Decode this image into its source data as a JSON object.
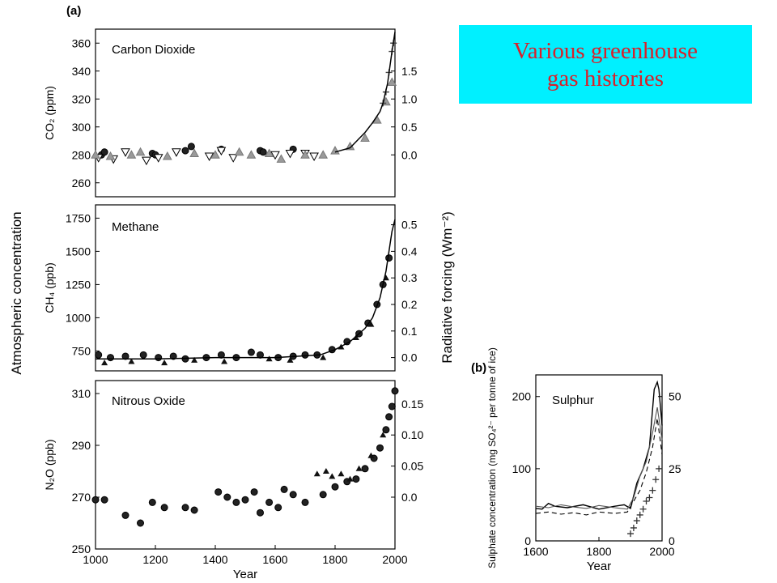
{
  "slide_title": {
    "line1": "Various greenhouse",
    "line2": "gas histories"
  },
  "figure": {
    "panel_a_label": "(a)",
    "panel_b_label": "(b)",
    "y_label_left": "Atmospheric concentration",
    "y_label_right": "Radiative forcing (Wm⁻²)"
  },
  "chart_data": [
    {
      "type": "scatter",
      "title": "Carbon Dioxide",
      "ylabel": "CO₂ (ppm)",
      "xlim": [
        1000,
        2000
      ],
      "ylim": [
        250,
        370
      ],
      "y_ticks": [
        260,
        280,
        300,
        320,
        340,
        360
      ],
      "y2_ticks": [
        0.0,
        0.5,
        1.0,
        1.5
      ],
      "y2_tick_labels": [
        "0.0",
        "0.5",
        "1.0",
        "1.5"
      ],
      "y2_tick_positions": [
        280,
        300,
        320,
        340
      ],
      "series": [
        {
          "marker": "circle-filled",
          "x": [
            1020,
            1030,
            1190,
            1200,
            1300,
            1320,
            1420,
            1550,
            1560,
            1660
          ],
          "y": [
            280,
            282,
            281,
            280,
            283,
            286,
            284,
            283,
            282,
            284
          ]
        },
        {
          "marker": "triangle-down-open",
          "x": [
            1010,
            1060,
            1100,
            1170,
            1210,
            1270,
            1380,
            1420,
            1460,
            1600,
            1650,
            1700,
            1730
          ],
          "y": [
            278,
            277,
            282,
            276,
            278,
            282,
            279,
            283,
            278,
            280,
            281,
            281,
            279
          ]
        },
        {
          "marker": "triangle-filled-gray",
          "x": [
            1000,
            1050,
            1120,
            1150,
            1240,
            1330,
            1400,
            1480,
            1520,
            1580,
            1620,
            1700,
            1760,
            1800,
            1850,
            1900,
            1940,
            1970,
            1990
          ],
          "y": [
            280,
            279,
            280,
            282,
            279,
            281,
            280,
            282,
            280,
            281,
            277,
            280,
            280,
            283,
            286,
            292,
            305,
            318,
            332
          ]
        },
        {
          "marker": "plus",
          "x": [
            1960,
            1970,
            1980,
            1990,
            1995
          ],
          "y": [
            317,
            325,
            339,
            354,
            360
          ]
        }
      ],
      "curve": {
        "x": [
          1800,
          1850,
          1900,
          1925,
          1950,
          1960,
          1975,
          1990,
          2000
        ],
        "y": [
          282,
          285,
          296,
          303,
          311,
          317,
          331,
          354,
          368
        ]
      }
    },
    {
      "type": "scatter",
      "title": "Methane",
      "ylabel": "CH₄ (ppb)",
      "xlim": [
        1000,
        2000
      ],
      "ylim": [
        600,
        1850
      ],
      "y_ticks": [
        750,
        1000,
        1250,
        1500,
        1750
      ],
      "y2_ticks": [
        0.0,
        0.1,
        0.2,
        0.3,
        0.4,
        0.5
      ],
      "y2_tick_labels": [
        "0.0",
        "0.1",
        "0.2",
        "0.3",
        "0.4",
        "0.5"
      ],
      "y2_tick_positions": [
        700,
        900,
        1100,
        1300,
        1500,
        1700
      ],
      "series": [
        {
          "marker": "circle-filled",
          "x": [
            1010,
            1050,
            1100,
            1160,
            1210,
            1260,
            1300,
            1370,
            1420,
            1470,
            1520,
            1550,
            1610,
            1660,
            1700,
            1740,
            1790,
            1840,
            1880,
            1910,
            1940,
            1960,
            1980
          ],
          "y": [
            720,
            700,
            710,
            720,
            700,
            710,
            690,
            700,
            720,
            700,
            740,
            720,
            700,
            710,
            720,
            720,
            760,
            820,
            880,
            960,
            1100,
            1250,
            1450
          ]
        },
        {
          "marker": "triangle-filled",
          "x": [
            1030,
            1120,
            1230,
            1330,
            1430,
            1580,
            1650,
            1760,
            1820,
            1870,
            1920,
            1970
          ],
          "y": [
            660,
            670,
            660,
            680,
            670,
            690,
            680,
            700,
            780,
            850,
            950,
            1300
          ]
        }
      ],
      "curve": {
        "x": [
          1000,
          1200,
          1400,
          1600,
          1750,
          1800,
          1850,
          1900,
          1925,
          1950,
          1970,
          1980,
          1990,
          2000
        ],
        "y": [
          690,
          690,
          700,
          700,
          720,
          760,
          820,
          920,
          1000,
          1150,
          1350,
          1500,
          1650,
          1740
        ]
      }
    },
    {
      "type": "scatter",
      "title": "Nitrous Oxide",
      "ylabel": "N₂O (ppb)",
      "xlabel": "Year",
      "xlim": [
        1000,
        2000
      ],
      "x_ticks": [
        1000,
        1200,
        1400,
        1600,
        1800,
        2000
      ],
      "ylim": [
        250,
        315
      ],
      "y_ticks": [
        250,
        270,
        290,
        310
      ],
      "y2_ticks": [
        0.0,
        0.05,
        0.1,
        0.15
      ],
      "y2_tick_labels": [
        "0.0",
        "0.05",
        "0.10",
        "0.15"
      ],
      "y2_tick_positions": [
        270,
        282,
        294,
        306
      ],
      "series": [
        {
          "marker": "circle-filled",
          "x": [
            1000,
            1030,
            1100,
            1150,
            1190,
            1230,
            1300,
            1330,
            1410,
            1440,
            1470,
            1500,
            1530,
            1550,
            1580,
            1610,
            1630,
            1660,
            1700,
            1760,
            1800,
            1840,
            1870,
            1900,
            1930,
            1950,
            1970,
            1980,
            1990,
            2000
          ],
          "y": [
            269,
            269,
            263,
            260,
            268,
            266,
            266,
            265,
            272,
            270,
            268,
            269,
            272,
            264,
            268,
            266,
            273,
            271,
            268,
            271,
            274,
            276,
            277,
            281,
            285,
            289,
            296,
            301,
            305,
            311
          ]
        },
        {
          "marker": "triangle-filled",
          "x": [
            1740,
            1770,
            1790,
            1820,
            1850,
            1880,
            1920,
            1960
          ],
          "y": [
            279,
            280,
            278,
            279,
            277,
            281,
            286,
            294
          ]
        }
      ]
    },
    {
      "type": "line",
      "title": "Sulphur",
      "ylabel": "Sulphate concentration (mg SO₄²⁻ per tonne of ice)",
      "xlabel": "Year",
      "xlim": [
        1600,
        2000
      ],
      "x_ticks": [
        1600,
        1800,
        2000
      ],
      "ylim": [
        0,
        230
      ],
      "y_ticks": [
        0,
        100,
        200
      ],
      "y2_ticks": [
        0,
        25,
        50
      ],
      "y2_tick_positions": [
        0,
        100,
        200
      ],
      "series": [
        {
          "style": "solid",
          "x": [
            1600,
            1620,
            1640,
            1660,
            1700,
            1750,
            1800,
            1850,
            1880,
            1900,
            1920,
            1940,
            1960,
            1975,
            1985,
            1990,
            2000
          ],
          "y": [
            45,
            44,
            52,
            48,
            46,
            50,
            44,
            48,
            50,
            45,
            80,
            100,
            130,
            210,
            220,
            210,
            160
          ]
        },
        {
          "style": "solid-light",
          "x": [
            1600,
            1640,
            1680,
            1720,
            1760,
            1800,
            1850,
            1890,
            1910,
            1930,
            1950,
            1970,
            1985,
            2000
          ],
          "y": [
            48,
            46,
            50,
            47,
            45,
            49,
            46,
            44,
            60,
            90,
            110,
            150,
            185,
            140
          ]
        },
        {
          "style": "dashed",
          "x": [
            1600,
            1640,
            1680,
            1720,
            1760,
            1800,
            1850,
            1890,
            1910,
            1930,
            1950,
            1970,
            1985,
            2000
          ],
          "y": [
            38,
            40,
            37,
            39,
            36,
            40,
            38,
            40,
            55,
            70,
            95,
            130,
            170,
            120
          ]
        },
        {
          "style": "plus",
          "x": [
            1900,
            1910,
            1920,
            1930,
            1940,
            1950,
            1960,
            1970,
            1980,
            1990
          ],
          "y": [
            10,
            18,
            28,
            36,
            44,
            55,
            60,
            70,
            85,
            100
          ]
        }
      ]
    }
  ]
}
